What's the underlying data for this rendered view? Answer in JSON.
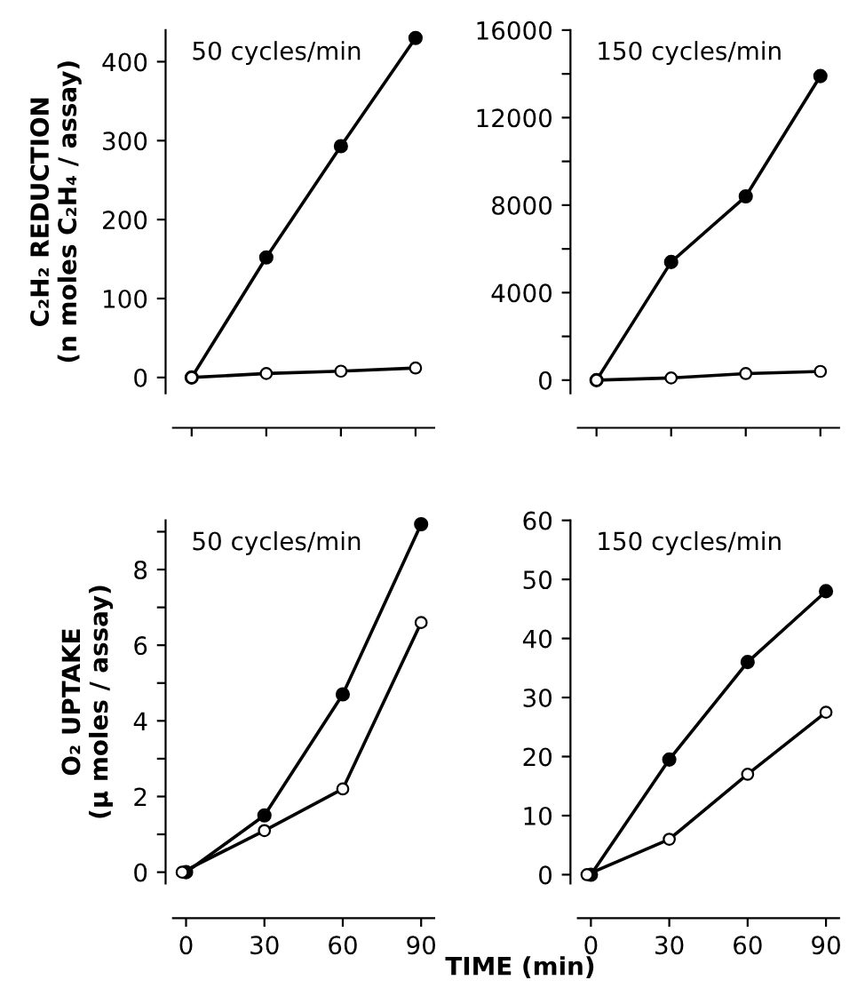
{
  "chart_data": [
    {
      "type": "line",
      "title": "50 cycles/min",
      "ylabel": "C₂H₂ REDUCTION\n(n moles C₂H₄ / assay)",
      "categories": [
        null,
        null,
        null,
        null
      ],
      "ylim": [
        -20,
        440
      ],
      "yticks": [
        0,
        100,
        200,
        300,
        400
      ],
      "tick_labels": "y",
      "marker": "circle",
      "line_style": "solid",
      "grid": false,
      "legend": false,
      "series": [
        {
          "color": "#000000",
          "values": [
            0,
            152,
            293,
            430
          ]
        },
        {
          "color": "#000000",
          "values": [
            0,
            5,
            8,
            12
          ]
        }
      ]
    },
    {
      "type": "line",
      "title": "150 cycles/min",
      "categories": [
        null,
        null,
        null,
        null
      ],
      "ylim": [
        -600,
        16000
      ],
      "yticks": [
        0,
        {
          "value": 2000,
          "label": null
        },
        4000,
        {
          "value": 6000,
          "label": null
        },
        8000,
        {
          "value": 10000,
          "label": null
        },
        12000,
        {
          "value": 14000,
          "label": null
        },
        16000
      ],
      "tick_labels": "y",
      "marker": "circle",
      "line_style": "solid",
      "grid": false,
      "legend": false,
      "series": [
        {
          "color": "#000000",
          "values": [
            0,
            5400,
            8400,
            13900
          ]
        },
        {
          "color": "#000000",
          "values": [
            0,
            100,
            300,
            400
          ]
        }
      ]
    },
    {
      "type": "line",
      "title": "50 cycles/min",
      "ylabel": "O₂ UPTAKE\n(μ moles / assay)",
      "xlabel": "TIME (min)",
      "xlim": [
        -5,
        95
      ],
      "xticks": [
        0,
        30,
        60,
        90
      ],
      "ylim": [
        -0.3,
        9.3
      ],
      "yticks": [
        0,
        {
          "value": 1,
          "label": null
        },
        2,
        {
          "value": 3,
          "label": null
        },
        4,
        {
          "value": 5,
          "label": null
        },
        6,
        {
          "value": 7,
          "label": null
        },
        8,
        {
          "value": 9,
          "label": null
        }
      ],
      "marker": "circle",
      "line_style": "solid",
      "grid": false,
      "legend": false,
      "series": [
        {
          "color": "#000000",
          "x": [
            0,
            30,
            60,
            90
          ],
          "values": [
            0,
            1.5,
            4.7,
            9.2
          ]
        },
        {
          "color": "#000000",
          "x": [
            -1.5,
            30,
            60,
            90
          ],
          "values": [
            0,
            1.1,
            2.2,
            6.6
          ]
        }
      ]
    },
    {
      "type": "line",
      "title": "150 cycles/min",
      "xlim": [
        -5,
        95
      ],
      "xticks": [
        0,
        30,
        60,
        90
      ],
      "ylim": [
        -1.5,
        60
      ],
      "yticks": [
        0,
        10,
        20,
        30,
        40,
        50,
        60
      ],
      "marker": "circle",
      "line_style": "solid",
      "grid": false,
      "legend": false,
      "series": [
        {
          "color": "#000000",
          "x": [
            0,
            30,
            60,
            90
          ],
          "values": [
            0,
            19.5,
            36,
            48
          ]
        },
        {
          "color": "#000000",
          "x": [
            -1.5,
            30,
            60,
            90
          ],
          "values": [
            0,
            6,
            17,
            27.5
          ]
        }
      ]
    }
  ]
}
